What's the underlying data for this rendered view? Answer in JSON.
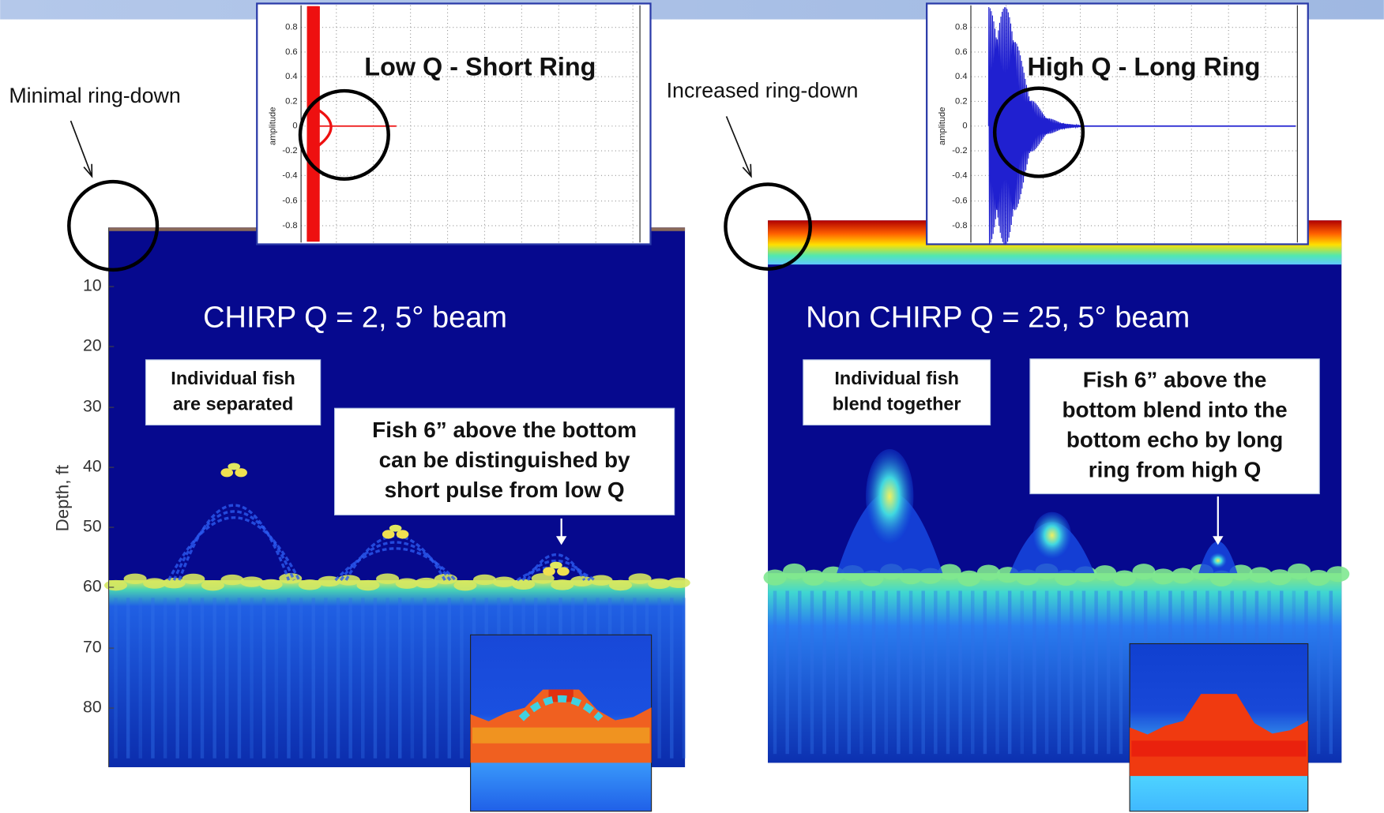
{
  "annotations": {
    "left_ring": "Minimal ring-down",
    "right_ring": "Increased ring-down"
  },
  "left_panel": {
    "title": "CHIRP Q = 2, 5° beam",
    "y_axis_label": "Depth, ft",
    "y_ticks": [
      10,
      20,
      30,
      40,
      50,
      60,
      70,
      80
    ],
    "callout_fish": [
      "Individual fish",
      "are separated"
    ],
    "callout_bottom": [
      "Fish 6” above the bottom",
      "can be distinguished by",
      "short pulse from low Q"
    ],
    "inset": {
      "title": "Low Q - Short Ring",
      "y_axis_label": "amplitude",
      "y_ticks": [
        0.8,
        0.6,
        0.4,
        0.2,
        0,
        -0.2,
        -0.4,
        -0.6,
        -0.8
      ]
    }
  },
  "right_panel": {
    "title": "Non CHIRP Q = 25, 5° beam",
    "callout_fish": [
      "Individual fish",
      "blend together"
    ],
    "callout_bottom": [
      "Fish 6” above the",
      "bottom blend into the",
      "bottom echo by long",
      "ring from high Q"
    ],
    "inset": {
      "title": "High Q - Long Ring",
      "y_axis_label": "amplitude",
      "y_ticks": [
        0.8,
        0.6,
        0.4,
        0.2,
        0,
        -0.2,
        -0.4,
        -0.6,
        -0.8
      ]
    }
  }
}
